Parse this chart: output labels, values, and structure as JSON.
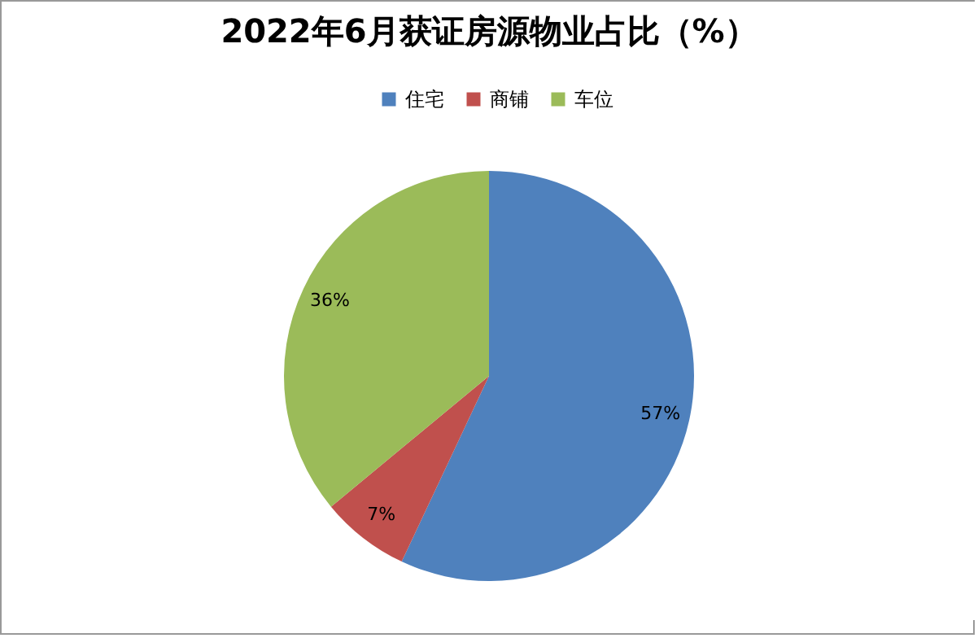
{
  "chart_data": {
    "type": "pie",
    "title": "2022年6月获证房源物业占比（%）",
    "categories": [
      "住宅",
      "商铺",
      "车位"
    ],
    "values": [
      57,
      7,
      36
    ],
    "colors": [
      "#4f81bd",
      "#c0504d",
      "#9bbb59"
    ],
    "value_labels": [
      "57%",
      "7%",
      "36%"
    ],
    "legend": "top"
  }
}
